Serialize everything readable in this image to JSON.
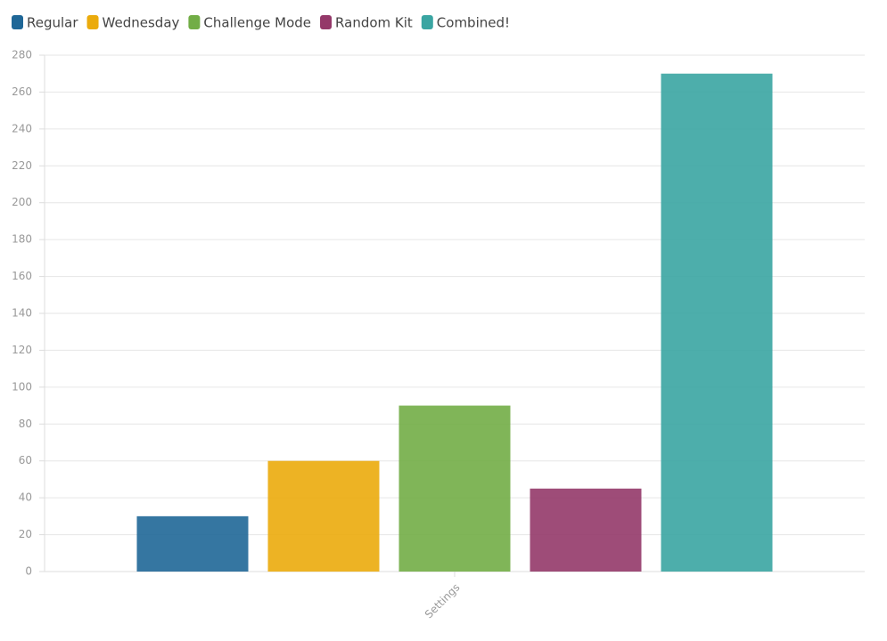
{
  "chart_data": {
    "type": "bar",
    "categories": [
      "Settings"
    ],
    "series": [
      {
        "name": "Regular",
        "color": "#1f6797",
        "values": [
          30
        ]
      },
      {
        "name": "Wednesday",
        "color": "#ebab0c",
        "values": [
          60
        ]
      },
      {
        "name": "Challenge Mode",
        "color": "#72ad46",
        "values": [
          90
        ]
      },
      {
        "name": "Random Kit",
        "color": "#943869",
        "values": [
          45
        ]
      },
      {
        "name": "Combined!",
        "color": "#3aa5a2",
        "values": [
          270
        ]
      }
    ],
    "ylim": [
      0,
      280
    ],
    "yticks": [
      0,
      20,
      40,
      60,
      80,
      100,
      120,
      140,
      160,
      180,
      200,
      220,
      240,
      260,
      280
    ],
    "grid": true,
    "legend": "top"
  }
}
